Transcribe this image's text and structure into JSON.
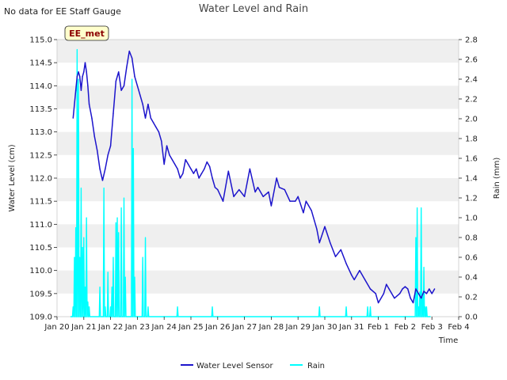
{
  "header": {
    "note": "No data for EE Staff Gauge",
    "title": "Water Level and Rain"
  },
  "station_label": "EE_met",
  "colors": {
    "water": "#1c14cc",
    "rain": "#00ffff",
    "band": "#efefef",
    "station_bg": "#ffffcc"
  },
  "chart_data": {
    "type": "line",
    "title": "Water Level and Rain",
    "xlabel": "Time",
    "ylabel": "Water Level (cm)",
    "y2label": "Rain (mm)",
    "xlim": [
      0,
      15
    ],
    "ylim": [
      109.0,
      115.0
    ],
    "y2lim": [
      0.0,
      2.8
    ],
    "x_tick_values": [
      0,
      1,
      2,
      3,
      4,
      5,
      6,
      7,
      8,
      9,
      10,
      11,
      12,
      13,
      14,
      15
    ],
    "x_tick_labels": [
      "Jan 20",
      "Jan 21",
      "Jan 22",
      "Jan 23",
      "Jan 24",
      "Jan 25",
      "Jan 26",
      "Jan 27",
      "Jan 28",
      "Jan 29",
      "Jan 30",
      "Jan 31",
      "Feb 1",
      "Feb 2",
      "Feb 3",
      "Feb 4"
    ],
    "y_tick_values": [
      109.0,
      109.5,
      110.0,
      110.5,
      111.0,
      111.5,
      112.0,
      112.5,
      113.0,
      113.5,
      114.0,
      114.5,
      115.0
    ],
    "y_tick_labels": [
      "109.0",
      "109.5",
      "110.0",
      "110.5",
      "111.0",
      "111.5",
      "112.0",
      "112.5",
      "113.0",
      "113.5",
      "114.0",
      "114.5",
      "115.0"
    ],
    "y2_tick_values": [
      0.0,
      0.2,
      0.4,
      0.6,
      0.8,
      1.0,
      1.2,
      1.4,
      1.6,
      1.8,
      2.0,
      2.2,
      2.4,
      2.6,
      2.8
    ],
    "y2_tick_labels": [
      "0.0",
      "0.2",
      "0.4",
      "0.6",
      "0.8",
      "1.0",
      "1.2",
      "1.4",
      "1.6",
      "1.8",
      "2.0",
      "2.2",
      "2.4",
      "2.6",
      "2.8"
    ],
    "legend_position": "bottom-center",
    "series": [
      {
        "name": "Water Level Sensor",
        "axis": "left",
        "x": [
          0.6,
          0.7,
          0.75,
          0.8,
          0.85,
          0.9,
          0.95,
          1.0,
          1.05,
          1.1,
          1.15,
          1.2,
          1.3,
          1.4,
          1.5,
          1.6,
          1.7,
          1.8,
          1.9,
          2.0,
          2.1,
          2.2,
          2.3,
          2.4,
          2.5,
          2.6,
          2.7,
          2.8,
          2.9,
          3.0,
          3.1,
          3.2,
          3.3,
          3.4,
          3.5,
          3.6,
          3.7,
          3.8,
          3.9,
          4.0,
          4.1,
          4.2,
          4.3,
          4.4,
          4.5,
          4.6,
          4.7,
          4.8,
          4.9,
          5.0,
          5.1,
          5.2,
          5.3,
          5.4,
          5.5,
          5.6,
          5.7,
          5.8,
          5.9,
          6.0,
          6.2,
          6.4,
          6.6,
          6.8,
          7.0,
          7.2,
          7.4,
          7.5,
          7.7,
          7.9,
          8.0,
          8.2,
          8.3,
          8.5,
          8.7,
          8.9,
          9.0,
          9.2,
          9.3,
          9.5,
          9.7,
          9.8,
          10.0,
          10.2,
          10.4,
          10.6,
          10.8,
          11.0,
          11.1,
          11.3,
          11.5,
          11.7,
          11.9,
          12.0,
          12.2,
          12.3,
          12.4,
          12.6,
          12.8,
          12.9,
          13.0,
          13.1,
          13.2,
          13.3,
          13.4,
          13.5,
          13.6,
          13.7,
          13.8,
          13.9,
          14.0,
          14.1
        ],
        "y": [
          113.3,
          113.9,
          114.2,
          114.3,
          114.2,
          113.9,
          114.2,
          114.3,
          114.5,
          114.3,
          114.0,
          113.6,
          113.3,
          112.9,
          112.6,
          112.2,
          111.95,
          112.2,
          112.5,
          112.7,
          113.4,
          114.1,
          114.3,
          113.9,
          114.0,
          114.4,
          114.75,
          114.6,
          114.2,
          114.0,
          113.8,
          113.6,
          113.3,
          113.6,
          113.3,
          113.2,
          113.1,
          113.0,
          112.8,
          112.3,
          112.7,
          112.5,
          112.4,
          112.3,
          112.2,
          112.0,
          112.1,
          112.4,
          112.3,
          112.2,
          112.1,
          112.2,
          112.0,
          112.1,
          112.2,
          112.35,
          112.25,
          112.0,
          111.8,
          111.75,
          111.5,
          112.15,
          111.6,
          111.75,
          111.6,
          112.2,
          111.7,
          111.8,
          111.6,
          111.7,
          111.4,
          112.0,
          111.8,
          111.75,
          111.5,
          111.5,
          111.6,
          111.25,
          111.5,
          111.3,
          110.9,
          110.6,
          110.95,
          110.6,
          110.3,
          110.45,
          110.15,
          109.9,
          109.8,
          110.0,
          109.8,
          109.6,
          109.5,
          109.3,
          109.5,
          109.7,
          109.6,
          109.4,
          109.5,
          109.6,
          109.65,
          109.6,
          109.4,
          109.3,
          109.6,
          109.5,
          109.4,
          109.55,
          109.5,
          109.6,
          109.5,
          109.6
        ]
      },
      {
        "name": "Rain",
        "axis": "right",
        "x": [
          0.6,
          0.65,
          0.7,
          0.75,
          0.8,
          0.85,
          0.9,
          0.95,
          1.0,
          1.05,
          1.1,
          1.15,
          1.2,
          1.6,
          1.75,
          1.8,
          1.9,
          2.0,
          2.05,
          2.1,
          2.2,
          2.25,
          2.3,
          2.4,
          2.5,
          2.55,
          2.8,
          2.85,
          2.9,
          3.2,
          3.3,
          3.4,
          4.5,
          5.8,
          9.8,
          10.8,
          11.6,
          11.7,
          13.4,
          13.45,
          13.5,
          13.55,
          13.6,
          13.65,
          13.7,
          13.75,
          13.8
        ],
        "y": [
          0.1,
          0.6,
          0.9,
          2.7,
          2.4,
          0.6,
          1.3,
          0.7,
          0.8,
          0.3,
          1.0,
          0.15,
          0.1,
          0.3,
          1.3,
          0.1,
          0.45,
          0.1,
          0.3,
          0.6,
          0.95,
          1.0,
          0.85,
          1.1,
          1.2,
          0.4,
          2.4,
          1.7,
          0.4,
          0.6,
          0.8,
          0.1,
          0.1,
          0.1,
          0.1,
          0.1,
          0.1,
          0.1,
          0.8,
          1.1,
          0.1,
          0.25,
          1.1,
          0.2,
          0.5,
          0.1,
          0.1
        ]
      }
    ]
  }
}
